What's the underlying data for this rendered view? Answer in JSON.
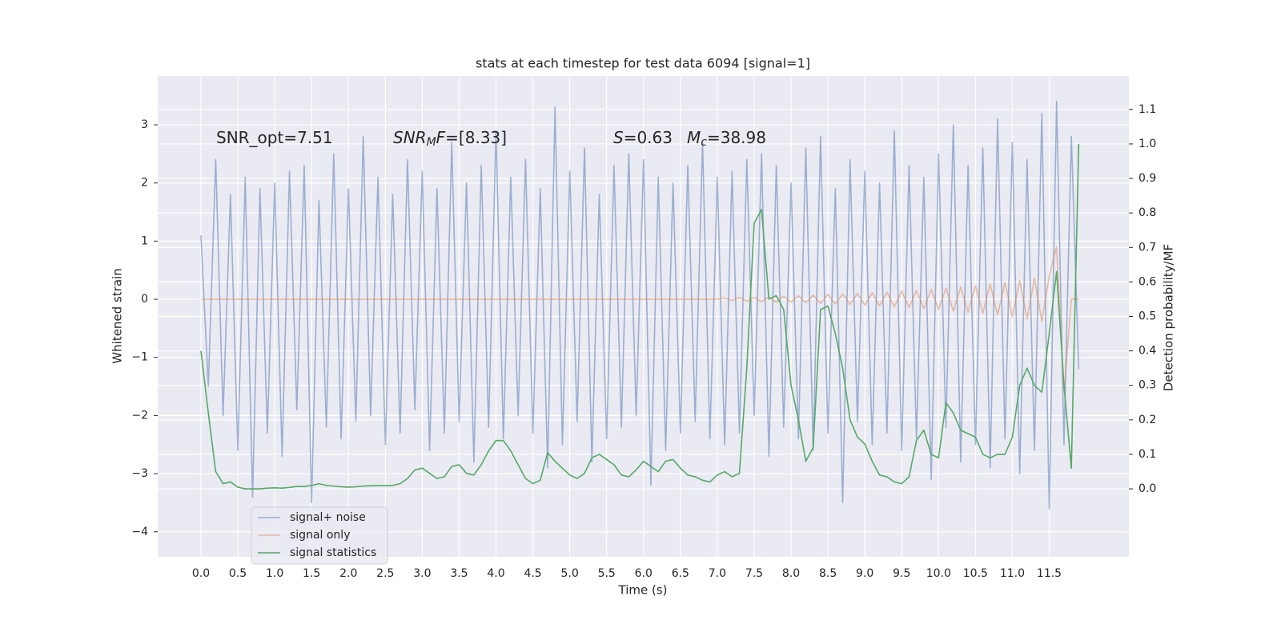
{
  "chart_data": {
    "type": "line",
    "title": "stats at each timestep for test data 6094 [signal=1]",
    "xlabel": "Time (s)",
    "ylabel": "Whitened strain",
    "y2label": "Detection probability/MF",
    "annotations": [
      [
        {
          "text": "SNR_opt=7.51"
        }
      ],
      [
        {
          "text": "SNR",
          "italic": true
        },
        {
          "text": "M",
          "italic": true,
          "sub": true
        },
        {
          "text": "F",
          "italic": true
        },
        {
          "text": "=[8.33]"
        }
      ],
      [
        {
          "text": "S",
          "italic": true
        },
        {
          "text": "=0.63"
        }
      ],
      [
        {
          "text": "M",
          "italic": true
        },
        {
          "text": "c",
          "italic": true,
          "sub": true
        },
        {
          "text": "=38.98"
        }
      ]
    ],
    "grid": true,
    "legend": "lower left",
    "xlim": [
      -0.586,
      12.58
    ],
    "ylim": [
      -4.43,
      3.84
    ],
    "y2lim": [
      -0.197,
      1.197
    ],
    "xticks": [
      {
        "value": 0,
        "label": "0.0"
      },
      {
        "value": 0.5,
        "label": "0.5"
      },
      {
        "value": 1,
        "label": "1.0"
      },
      {
        "value": 1.5,
        "label": "1.5"
      },
      {
        "value": 2,
        "label": "2.0"
      },
      {
        "value": 2.5,
        "label": "2.5"
      },
      {
        "value": 3,
        "label": "3.0"
      },
      {
        "value": 3.5,
        "label": "3.5"
      },
      {
        "value": 4,
        "label": "4.0"
      },
      {
        "value": 4.5,
        "label": "4.5"
      },
      {
        "value": 5,
        "label": "5.0"
      },
      {
        "value": 5.5,
        "label": "5.5"
      },
      {
        "value": 6,
        "label": "6.0"
      },
      {
        "value": 6.5,
        "label": "6.5"
      },
      {
        "value": 7,
        "label": "7.0"
      },
      {
        "value": 7.5,
        "label": "7.5"
      },
      {
        "value": 8,
        "label": "8.0"
      },
      {
        "value": 8.5,
        "label": "8.5"
      },
      {
        "value": 9,
        "label": "9.0"
      },
      {
        "value": 9.5,
        "label": "9.5"
      },
      {
        "value": 10,
        "label": "10.0"
      },
      {
        "value": 10.5,
        "label": "10.5"
      },
      {
        "value": 11,
        "label": "11.0"
      },
      {
        "value": 11.5,
        "label": "11.5"
      }
    ],
    "yticks": [
      {
        "value": -4,
        "label": "−4"
      },
      {
        "value": -3,
        "label": "−3"
      },
      {
        "value": -2,
        "label": "−2"
      },
      {
        "value": -1,
        "label": "−1"
      },
      0,
      1,
      2,
      3
    ],
    "y2ticks": [
      {
        "value": 0,
        "label": "0.0"
      },
      0.1,
      0.2,
      0.3,
      0.4,
      0.5,
      0.6,
      0.7,
      0.8,
      0.9,
      {
        "value": 1,
        "label": "1.0"
      },
      1.1
    ],
    "x": [
      0,
      0.1,
      0.2,
      0.3,
      0.4,
      0.5,
      0.6,
      0.7,
      0.8,
      0.9,
      1,
      1.1,
      1.2,
      1.3,
      1.4,
      1.5,
      1.6,
      1.7,
      1.8,
      1.9,
      2,
      2.1,
      2.2,
      2.3,
      2.4,
      2.5,
      2.6,
      2.7,
      2.8,
      2.9,
      3,
      3.1,
      3.2,
      3.3,
      3.4,
      3.5,
      3.6,
      3.7,
      3.8,
      3.9,
      4,
      4.1,
      4.2,
      4.3,
      4.4,
      4.5,
      4.6,
      4.7,
      4.8,
      4.9,
      5,
      5.1,
      5.2,
      5.3,
      5.4,
      5.5,
      5.6,
      5.7,
      5.8,
      5.9,
      6,
      6.1,
      6.2,
      6.3,
      6.4,
      6.5,
      6.6,
      6.7,
      6.8,
      6.9,
      7,
      7.1,
      7.2,
      7.3,
      7.4,
      7.5,
      7.6,
      7.7,
      7.8,
      7.9,
      8,
      8.1,
      8.2,
      8.3,
      8.4,
      8.5,
      8.6,
      8.7,
      8.8,
      8.9,
      9,
      9.1,
      9.2,
      9.3,
      9.4,
      9.5,
      9.6,
      9.7,
      9.8,
      9.9,
      10,
      10.1,
      10.2,
      10.3,
      10.4,
      10.5,
      10.6,
      10.7,
      10.8,
      10.9,
      11,
      11.1,
      11.2,
      11.3,
      11.4,
      11.5,
      11.6,
      11.7,
      11.8,
      11.9
    ],
    "series": [
      {
        "name": "signal+ noise",
        "color": "#4c72b0",
        "alpha": 0.5,
        "axis": "y",
        "values": [
          1.1,
          -1.5,
          2.4,
          -2.0,
          1.8,
          -2.6,
          2.1,
          -3.4,
          1.9,
          -2.3,
          2.0,
          -2.7,
          2.2,
          -1.9,
          2.3,
          -3.5,
          1.7,
          -2.2,
          2.5,
          -2.4,
          1.9,
          -2.1,
          2.8,
          -2.0,
          2.1,
          -2.5,
          1.8,
          -2.3,
          2.4,
          -1.9,
          2.2,
          -2.6,
          1.9,
          -2.3,
          2.7,
          -2.1,
          2.0,
          -2.8,
          2.3,
          -2.2,
          2.9,
          -2.4,
          2.1,
          -2.0,
          2.4,
          -2.3,
          1.9,
          -2.9,
          3.3,
          -2.5,
          2.2,
          -2.1,
          2.6,
          -2.8,
          1.8,
          -2.4,
          2.3,
          -2.2,
          2.5,
          -2.0,
          2.4,
          -3.2,
          2.1,
          -2.6,
          2.0,
          -2.3,
          2.3,
          -2.1,
          2.7,
          -2.4,
          2.1,
          -2.5,
          2.2,
          -2.3,
          2.4,
          -2.0,
          2.5,
          -2.7,
          2.3,
          -2.2,
          2.0,
          -2.4,
          2.6,
          -2.6,
          2.8,
          -2.3,
          1.9,
          -3.5,
          2.4,
          -2.1,
          2.2,
          -2.5,
          2.0,
          -2.3,
          2.9,
          -2.6,
          2.3,
          -2.4,
          2.1,
          -3.1,
          2.5,
          -2.2,
          3.0,
          -2.8,
          2.3,
          -2.5,
          2.6,
          -2.9,
          3.1,
          -2.4,
          2.7,
          -3.0,
          2.4,
          -2.6,
          3.2,
          -3.6,
          3.4,
          -2.5,
          2.8,
          -1.2
        ]
      },
      {
        "name": "signal only",
        "color": "#dd8452",
        "alpha": 0.5,
        "axis": "y",
        "values": [
          0,
          0,
          0,
          0,
          0,
          0,
          0,
          0,
          0,
          0,
          0,
          0,
          0,
          0,
          0,
          0,
          0,
          0,
          0,
          0,
          0,
          0,
          0,
          0,
          0,
          0,
          0,
          0,
          0,
          0,
          0,
          0,
          0,
          0,
          0,
          0,
          0,
          0,
          0,
          0,
          0,
          0,
          0,
          0,
          0,
          0,
          0,
          0,
          0,
          0,
          0,
          0,
          0,
          0,
          0,
          0,
          0,
          0,
          0,
          0,
          0,
          0,
          0,
          0,
          0,
          0,
          0,
          0,
          0,
          0,
          0,
          0.02,
          -0.02,
          0.03,
          -0.03,
          0.03,
          -0.04,
          0.04,
          -0.05,
          0.05,
          -0.05,
          0.06,
          -0.06,
          0.07,
          -0.07,
          0.08,
          -0.08,
          0.09,
          -0.09,
          0.1,
          -0.1,
          0.11,
          -0.11,
          0.12,
          -0.13,
          0.14,
          -0.14,
          0.15,
          -0.16,
          0.17,
          -0.18,
          0.19,
          -0.2,
          0.21,
          -0.22,
          0.23,
          -0.24,
          0.26,
          -0.27,
          0.29,
          -0.3,
          0.32,
          -0.34,
          0.36,
          -0.38,
          0.4,
          0.9,
          -1.6,
          0,
          0
        ]
      },
      {
        "name": "signal statistics",
        "color": "#55a868",
        "alpha": 1,
        "axis": "y2",
        "values": [
          0.4,
          0.22,
          0.05,
          0.015,
          0.02,
          0.005,
          0,
          0,
          0,
          0.002,
          0.003,
          0.002,
          0.004,
          0.007,
          0.007,
          0.01,
          0.015,
          0.01,
          0.008,
          0.006,
          0.005,
          0.006,
          0.008,
          0.009,
          0.01,
          0.009,
          0.01,
          0.015,
          0.03,
          0.055,
          0.06,
          0.045,
          0.03,
          0.035,
          0.065,
          0.07,
          0.045,
          0.04,
          0.07,
          0.11,
          0.14,
          0.14,
          0.11,
          0.07,
          0.03,
          0.015,
          0.025,
          0.105,
          0.08,
          0.06,
          0.04,
          0.03,
          0.045,
          0.09,
          0.1,
          0.085,
          0.07,
          0.04,
          0.035,
          0.055,
          0.08,
          0.065,
          0.05,
          0.08,
          0.085,
          0.06,
          0.04,
          0.035,
          0.025,
          0.02,
          0.04,
          0.05,
          0.035,
          0.045,
          0.35,
          0.77,
          0.81,
          0.55,
          0.56,
          0.52,
          0.3,
          0.2,
          0.08,
          0.12,
          0.52,
          0.53,
          0.45,
          0.35,
          0.2,
          0.15,
          0.13,
          0.08,
          0.04,
          0.035,
          0.02,
          0.015,
          0.035,
          0.14,
          0.17,
          0.1,
          0.09,
          0.25,
          0.22,
          0.17,
          0.16,
          0.15,
          0.1,
          0.09,
          0.1,
          0.1,
          0.15,
          0.3,
          0.35,
          0.3,
          0.28,
          0.45,
          0.63,
          0.3,
          0.06,
          1.0
        ]
      }
    ]
  }
}
